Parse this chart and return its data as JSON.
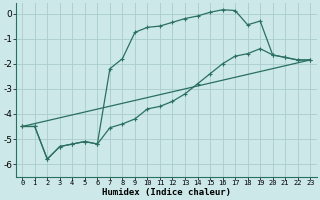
{
  "xlabel": "Humidex (Indice chaleur)",
  "bg_color": "#cce8e8",
  "grid_color": "#aacccc",
  "line_color": "#2a7060",
  "xlim": [
    -0.5,
    23.5
  ],
  "ylim": [
    -6.5,
    0.4
  ],
  "xticks": [
    0,
    1,
    2,
    3,
    4,
    5,
    6,
    7,
    8,
    9,
    10,
    11,
    12,
    13,
    14,
    15,
    16,
    17,
    18,
    19,
    20,
    21,
    22,
    23
  ],
  "yticks": [
    0,
    -1,
    -2,
    -3,
    -4,
    -5,
    -6
  ],
  "curve1_x": [
    0,
    1,
    2,
    3,
    4,
    5,
    6,
    7,
    8,
    9,
    10,
    11,
    12,
    13,
    14,
    15,
    16,
    17,
    18,
    19,
    20,
    21,
    22,
    23
  ],
  "curve1_y": [
    -4.5,
    -4.5,
    -5.8,
    -5.3,
    -5.2,
    -5.1,
    -5.2,
    -2.2,
    -1.8,
    -0.75,
    -0.55,
    -0.5,
    -0.35,
    -0.2,
    -0.1,
    0.05,
    0.15,
    0.12,
    -0.45,
    -0.3,
    -1.65,
    -1.75,
    -1.85,
    -1.85
  ],
  "curve2_x": [
    0,
    1,
    2,
    3,
    4,
    5,
    6,
    7,
    8,
    9,
    10,
    11,
    12,
    13,
    14,
    15,
    16,
    17,
    18,
    19,
    20,
    21,
    22,
    23
  ],
  "curve2_y": [
    -4.5,
    -4.5,
    -5.8,
    -5.3,
    -5.2,
    -5.1,
    -5.2,
    -4.55,
    -4.4,
    -4.2,
    -3.8,
    -3.7,
    -3.5,
    -3.2,
    -2.8,
    -2.4,
    -2.0,
    -1.7,
    -1.6,
    -1.4,
    -1.65,
    -1.75,
    -1.85,
    -1.85
  ],
  "line_x": [
    0,
    23
  ],
  "line_y": [
    -4.5,
    -1.85
  ]
}
